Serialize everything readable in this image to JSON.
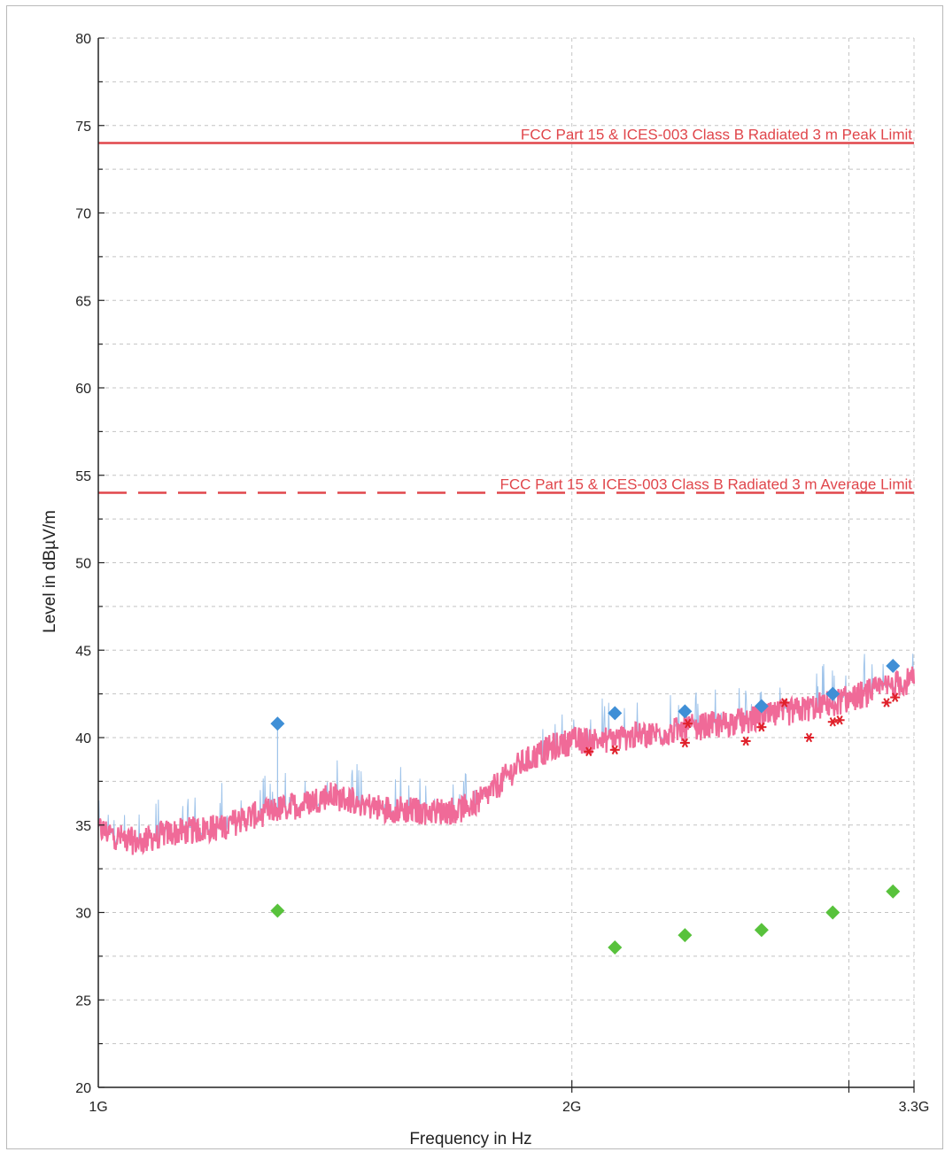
{
  "chart_data": {
    "type": "line",
    "title": "",
    "xlabel": "Frequency in Hz",
    "ylabel": "Level in dBµV/m",
    "x_scale": "log",
    "x_unit": "Hz",
    "xlim": [
      1000000000,
      3300000000
    ],
    "ylim": [
      20,
      80
    ],
    "grid": true,
    "x_ticks": [
      {
        "value": 1000000000,
        "label": "1G"
      },
      {
        "value": 2000000000,
        "label": "2G"
      },
      {
        "value": 3300000000,
        "label": "3.3G"
      }
    ],
    "y_ticks": [
      {
        "value": 20,
        "label": "20"
      },
      {
        "value": 25,
        "label": "25"
      },
      {
        "value": 30,
        "label": "30"
      },
      {
        "value": 35,
        "label": "35"
      },
      {
        "value": 40,
        "label": "40"
      },
      {
        "value": 45,
        "label": "45"
      },
      {
        "value": 50,
        "label": "50"
      },
      {
        "value": 55,
        "label": "55"
      },
      {
        "value": 60,
        "label": "60"
      },
      {
        "value": 65,
        "label": "65"
      },
      {
        "value": 70,
        "label": "70"
      },
      {
        "value": 75,
        "label": "75"
      },
      {
        "value": 80,
        "label": "80"
      }
    ],
    "limits": [
      {
        "label": "FCC Part 15 & ICES-003 Class B Radiated 3 m Peak Limit",
        "value": 74,
        "style": "solid",
        "color": "#e0464b"
      },
      {
        "label": "FCC Part 15 & ICES-003 Class B Radiated 3 m Average Limit",
        "value": 54,
        "style": "dashed",
        "color": "#e0464b"
      }
    ],
    "series": [
      {
        "kind": "trace",
        "color": "#f06a98",
        "x": [
          1000000000,
          1030000000,
          1060000000,
          1100000000,
          1150000000,
          1200000000,
          1250000000,
          1300000000,
          1350000000,
          1400000000,
          1450000000,
          1500000000,
          1550000000,
          1600000000,
          1650000000,
          1700000000,
          1750000000,
          1800000000,
          1850000000,
          1900000000,
          1950000000,
          2000000000,
          2100000000,
          2200000000,
          2300000000,
          2400000000,
          2500000000,
          2600000000,
          2700000000,
          2800000000,
          2900000000,
          3000000000,
          3100000000,
          3200000000,
          3300000000
        ],
        "y": [
          34.8,
          34.3,
          34.0,
          34.5,
          34.7,
          34.9,
          35.5,
          35.9,
          36.2,
          36.7,
          36.4,
          36.0,
          35.9,
          35.8,
          35.8,
          35.9,
          36.4,
          37.4,
          38.4,
          39.0,
          39.5,
          39.8,
          39.9,
          40.1,
          40.3,
          40.6,
          40.8,
          41.0,
          41.3,
          41.6,
          41.9,
          42.2,
          42.6,
          43.0,
          43.3
        ],
        "noise": 0.8
      },
      {
        "kind": "markers",
        "marker": "diamond",
        "color": "#3f8fd6",
        "x": [
          1300000000,
          2130000000,
          2360000000,
          2640000000,
          2930000000,
          3200000000
        ],
        "y": [
          40.8,
          41.4,
          41.5,
          41.8,
          42.5,
          44.1
        ]
      },
      {
        "kind": "markers",
        "marker": "diamond",
        "color": "#58c23c",
        "x": [
          1300000000,
          2130000000,
          2360000000,
          2640000000,
          2930000000,
          3200000000
        ],
        "y": [
          30.1,
          28.0,
          28.7,
          29.0,
          30.0,
          31.2
        ]
      },
      {
        "kind": "markers",
        "marker": "asterisk",
        "color": "#e0202a",
        "x": [
          2050000000,
          2130000000,
          2360000000,
          2370000000,
          2580000000,
          2640000000,
          2730000000,
          2830000000,
          2930000000,
          2960000000,
          3170000000,
          3210000000
        ],
        "y": [
          39.2,
          39.3,
          39.7,
          40.8,
          39.8,
          40.6,
          42.0,
          40.0,
          40.9,
          41.0,
          42.0,
          42.3
        ]
      }
    ]
  }
}
